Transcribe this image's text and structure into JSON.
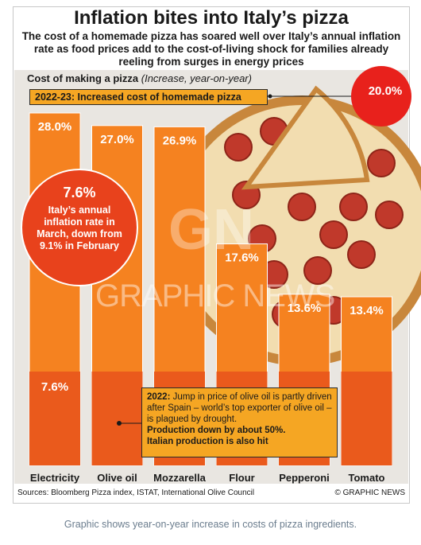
{
  "title": "Inflation bites into Italy’s pizza",
  "subtitle": "The cost of a homemade pizza has soared well over Italy’s annual inflation rate as food prices add to the cost-of-living shock for families already reeling from surges in energy prices",
  "chart_label_bold": "Cost of making a pizza",
  "chart_label_italic": "(Increase, year-on-year)",
  "banner": "2022-23: Increased cost of homemade pizza",
  "inflation_circle": {
    "value": "7.6%",
    "text": "Italy’s annual inflation rate in March, down from 9.1% in February"
  },
  "note": {
    "lead_bold": "2022:",
    "text": "Jump in price of olive oil is partly driven after Spain – world’s top exporter of olive oil – is plagued by drought.",
    "bold1": "Production down by about 50%.",
    "bold2": "Italian production is also hit"
  },
  "sources": "Sources: Bloomberg Pizza index, ISTAT, International Olive Council",
  "copyright": "© GRAPHIC NEWS",
  "watermark": "GRAPHIC NEWS",
  "watermark_logo": "GN",
  "caption": "Graphic shows year-on-year increase in costs of pizza ingredients.",
  "colors": {
    "bar": "#f58220",
    "bar_base": "#ea5a1c",
    "accent_red": "#e8421c",
    "banner": "#f5a623"
  },
  "chart_data": {
    "type": "bar",
    "title": "Cost of making a pizza",
    "ylabel": "(Increase, year-on-year)",
    "categories": [
      "Electricity",
      "Olive oil",
      "Mozzarella",
      "Flour",
      "Pepperoni",
      "Tomato"
    ],
    "values": [
      28.0,
      27.0,
      26.9,
      17.6,
      13.6,
      13.4
    ],
    "value_labels": [
      "28.0%",
      "27.0%",
      "26.9%",
      "17.6%",
      "13.6%",
      "13.4%"
    ],
    "total": {
      "label": "20.0%",
      "value": 20.0
    },
    "inflation_reference": {
      "label": "7.6%",
      "value": 7.6
    },
    "ylim": [
      0,
      28
    ]
  }
}
